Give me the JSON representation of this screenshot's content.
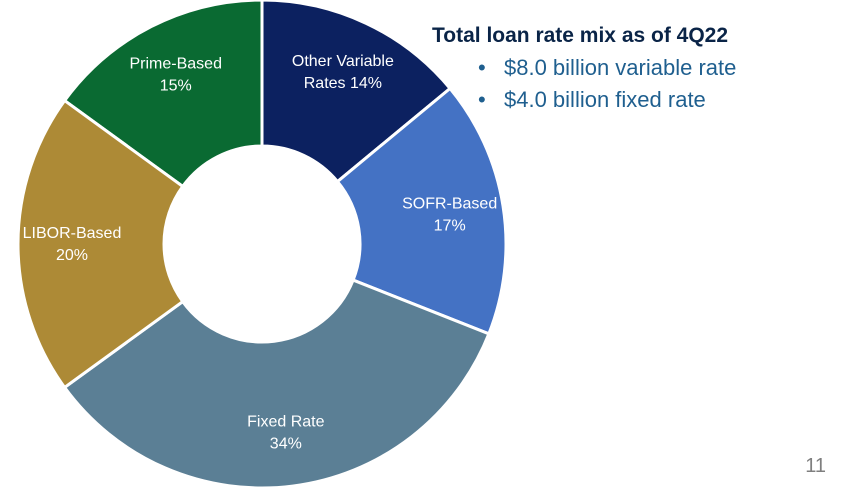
{
  "chart_data": {
    "type": "pie",
    "donut": true,
    "slices": [
      {
        "label_lines": [
          "Prime-Based",
          "15%"
        ],
        "value": 15,
        "color": "#0a6a32"
      },
      {
        "label_lines": [
          "Other Variable",
          "Rates 14%"
        ],
        "value": 14,
        "color": "#0c2160"
      },
      {
        "label_lines": [
          "SOFR-Based",
          "17%"
        ],
        "value": 17,
        "color": "#4472c4"
      },
      {
        "label_lines": [
          "Fixed Rate",
          "34%"
        ],
        "value": 34,
        "color": "#5b7f95"
      },
      {
        "label_lines": [
          "LIBOR-Based",
          "20%"
        ],
        "value": 20,
        "color": "#ad8a36"
      }
    ]
  },
  "summary": {
    "title": "Total loan rate mix as of 4Q22",
    "bullet_symbol": "•",
    "items": [
      "$8.0 billion variable rate",
      "$4.0 billion fixed rate"
    ]
  },
  "page_number": "11"
}
